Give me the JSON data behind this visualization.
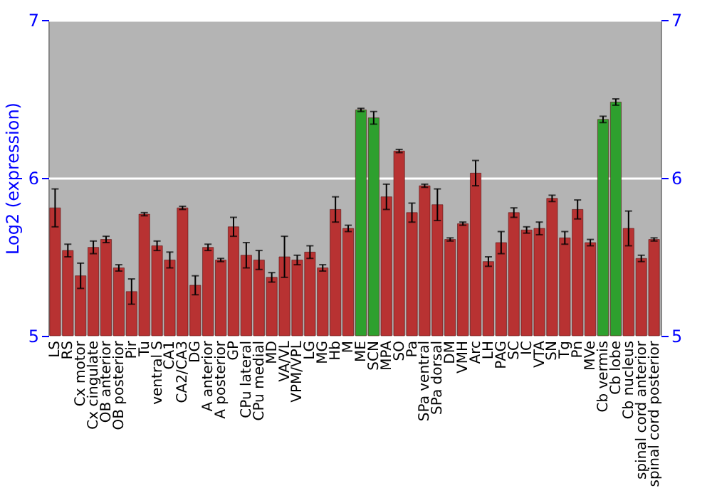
{
  "chart_data": {
    "type": "bar",
    "ylabel": "Log2 (expression)",
    "categories": [
      "LS",
      "RS",
      "Cx motor",
      "Cx cingulate",
      "OB anterior",
      "OB posterior",
      "Pir",
      "Tu",
      "ventral S",
      "CA1",
      "CA2/CA3",
      "DG",
      "A anterior",
      "A posterior",
      "GP",
      "CPu lateral",
      "CPu medial",
      "MD",
      "VA/VL",
      "VPM/VPL",
      "LG",
      "MG",
      "Hb",
      "M",
      "ME",
      "SCN",
      "MPA",
      "SO",
      "Pa",
      "SPa ventral",
      "SPa dorsal",
      "DM",
      "VMH",
      "Arc",
      "LH",
      "PAG",
      "SC",
      "IC",
      "VTA",
      "SN",
      "Tg",
      "Pn",
      "MVe",
      "Cb vermis",
      "Cb lobe",
      "Cb nucleus",
      "spinal cord anterior",
      "spinal cord posterior"
    ],
    "values": [
      5.81,
      5.54,
      5.38,
      5.56,
      5.61,
      5.43,
      5.28,
      5.77,
      5.57,
      5.48,
      5.81,
      5.32,
      5.56,
      5.48,
      5.69,
      5.51,
      5.48,
      5.37,
      5.5,
      5.48,
      5.53,
      5.43,
      5.8,
      5.68,
      6.43,
      6.38,
      5.88,
      6.17,
      5.78,
      5.95,
      5.83,
      5.61,
      5.71,
      6.03,
      5.47,
      5.59,
      5.78,
      5.67,
      5.68,
      5.87,
      5.62,
      5.8,
      5.59,
      6.37,
      6.48,
      5.68,
      5.49,
      5.61
    ],
    "errors": [
      0.12,
      0.04,
      0.08,
      0.04,
      0.02,
      0.02,
      0.08,
      0.01,
      0.03,
      0.05,
      0.01,
      0.06,
      0.02,
      0.01,
      0.06,
      0.08,
      0.06,
      0.03,
      0.13,
      0.03,
      0.04,
      0.02,
      0.08,
      0.02,
      0.01,
      0.04,
      0.08,
      0.01,
      0.06,
      0.01,
      0.1,
      0.01,
      0.01,
      0.08,
      0.03,
      0.07,
      0.03,
      0.02,
      0.04,
      0.02,
      0.04,
      0.06,
      0.02,
      0.02,
      0.02,
      0.11,
      0.02,
      0.01
    ],
    "colors": [
      "#b83232",
      "#b83232",
      "#b83232",
      "#b83232",
      "#b83232",
      "#b83232",
      "#b83232",
      "#b83232",
      "#b83232",
      "#b83232",
      "#b83232",
      "#b83232",
      "#b83232",
      "#b83232",
      "#b83232",
      "#b83232",
      "#b83232",
      "#b83232",
      "#b83232",
      "#b83232",
      "#b83232",
      "#b83232",
      "#b83232",
      "#b83232",
      "#2ea02e",
      "#2ea02e",
      "#b83232",
      "#b83232",
      "#b83232",
      "#b83232",
      "#b83232",
      "#b83232",
      "#b83232",
      "#b83232",
      "#b83232",
      "#b83232",
      "#b83232",
      "#b83232",
      "#b83232",
      "#b83232",
      "#b83232",
      "#b83232",
      "#b83232",
      "#2ea02e",
      "#2ea02e",
      "#b83232",
      "#b83232",
      "#b83232"
    ],
    "ylim": [
      5,
      7
    ],
    "yticks": [
      5,
      6,
      7
    ],
    "y2lim": [
      5,
      7
    ],
    "y2ticks": [
      5,
      6,
      7
    ],
    "grid": "y"
  }
}
